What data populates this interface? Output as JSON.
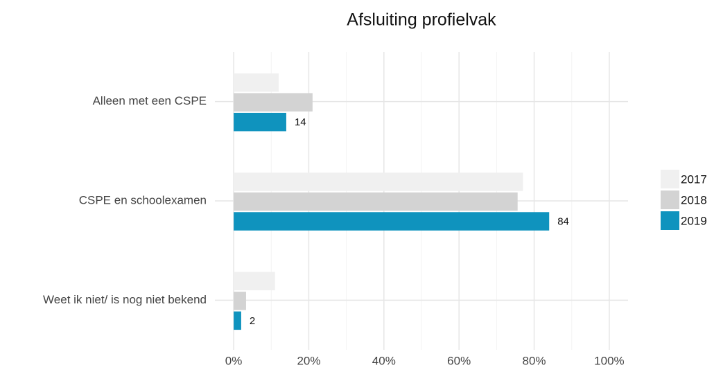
{
  "chart_data": {
    "type": "barh",
    "title": "Afsluiting profielvak",
    "categories": [
      "Alleen met een CSPE",
      "CSPE en schoolexamen",
      "Weet ik niet/ is nog niet bekend"
    ],
    "series": [
      {
        "name": "2017",
        "color": "#f0f0f0",
        "values": [
          12,
          77,
          11
        ],
        "show_labels": false
      },
      {
        "name": "2018",
        "color": "#d3d3d3",
        "values": [
          21,
          75.6,
          3.3
        ],
        "show_labels": false
      },
      {
        "name": "2019",
        "color": "#0f93be",
        "values": [
          14,
          84,
          2
        ],
        "show_labels": true
      }
    ],
    "xlim": [
      -5,
      105
    ],
    "xticks": [
      {
        "value": 0,
        "label": "0%"
      },
      {
        "value": 20,
        "label": "20%"
      },
      {
        "value": 40,
        "label": "40%"
      },
      {
        "value": 60,
        "label": "60%"
      },
      {
        "value": 80,
        "label": "80%"
      },
      {
        "value": 100,
        "label": "100%"
      }
    ],
    "xminor": [
      10,
      30,
      50,
      70,
      90
    ],
    "grid": true,
    "legend": "right"
  }
}
